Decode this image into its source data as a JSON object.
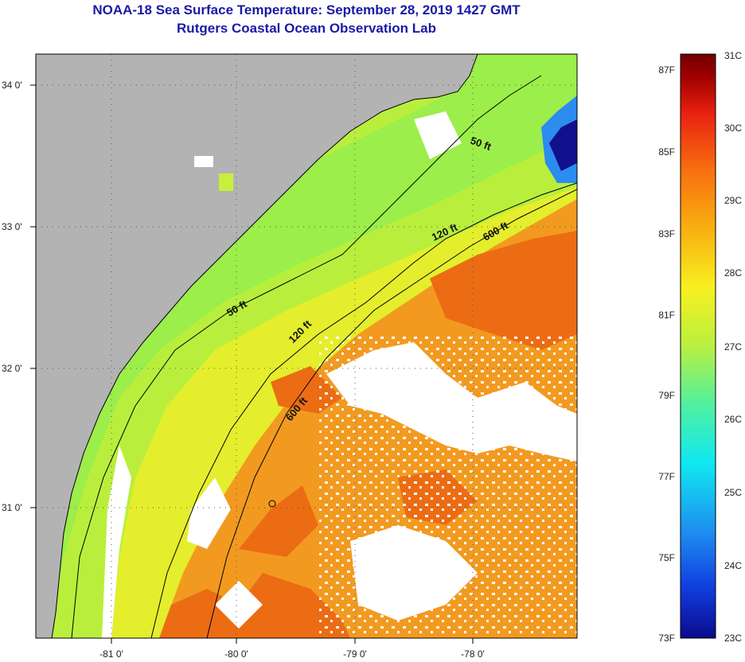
{
  "header": {
    "title": "NOAA-18 Sea Surface Temperature:  September 28, 2019 1427 GMT",
    "subtitle": "Rutgers Coastal Ocean Observation Lab"
  },
  "map": {
    "lat_labels": [
      "34 0'",
      "33 0'",
      "32 0'",
      "31 0'"
    ],
    "lon_labels": [
      "-81 0'",
      "-80 0'",
      "-79 0'",
      "-78 0'"
    ],
    "contours": [
      {
        "label": "50 ft"
      },
      {
        "label": "50 ft"
      },
      {
        "label": "120 ft"
      },
      {
        "label": "120 ft"
      },
      {
        "label": "600 ft"
      },
      {
        "label": "600 ft"
      }
    ],
    "colors": {
      "land": "#b3b3b3",
      "cloud": "#ffffff",
      "coast_water": "#b9ef3c",
      "shelf_water": "#e8ee2e",
      "gulfstream": "#f39a1e",
      "hot": "#ee6a12"
    }
  },
  "colorbar": {
    "fahrenheit_labels": [
      "87F",
      "85F",
      "83F",
      "81F",
      "79F",
      "77F",
      "75F",
      "73F"
    ],
    "celsius_labels": [
      "31C",
      "30C",
      "29C",
      "28C",
      "27C",
      "26C",
      "25C",
      "24C",
      "23C"
    ],
    "stops": [
      "#0a0a8c",
      "#1040e0",
      "#1e8cf0",
      "#10e8f0",
      "#50f0a0",
      "#b8f040",
      "#f8f020",
      "#f8b010",
      "#f87010",
      "#e82010",
      "#a00000",
      "#700000"
    ]
  }
}
